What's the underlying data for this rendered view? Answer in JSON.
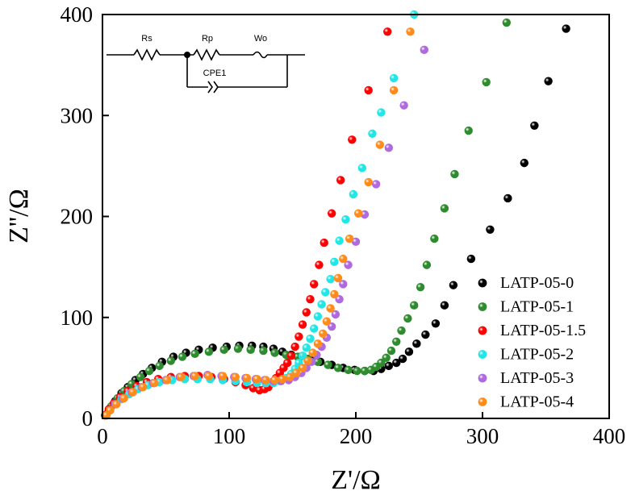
{
  "chart_data": {
    "type": "scatter",
    "title": "",
    "xlabel": "Z'/Ω",
    "ylabel": "Z''/Ω",
    "xlim": [
      0,
      400
    ],
    "ylim": [
      0,
      400
    ],
    "xticks": [
      "0",
      "100",
      "200",
      "300",
      "400"
    ],
    "yticks": [
      "0",
      "100",
      "200",
      "300",
      "400"
    ],
    "legend_position": "bottom-right",
    "series": [
      {
        "name": "LATP-05-0",
        "color": "#000000",
        "points": [
          [
            3,
            3
          ],
          [
            6,
            10
          ],
          [
            10,
            17
          ],
          [
            15,
            25
          ],
          [
            20,
            31
          ],
          [
            26,
            38
          ],
          [
            32,
            44
          ],
          [
            39,
            50
          ],
          [
            47,
            56
          ],
          [
            56,
            61
          ],
          [
            66,
            65
          ],
          [
            76,
            68
          ],
          [
            87,
            70
          ],
          [
            98,
            71
          ],
          [
            108,
            72
          ],
          [
            118,
            72
          ],
          [
            127,
            71
          ],
          [
            135,
            69
          ],
          [
            142,
            66
          ],
          [
            149,
            63
          ],
          [
            156,
            61
          ],
          [
            164,
            59
          ],
          [
            172,
            56
          ],
          [
            181,
            53
          ],
          [
            190,
            50
          ],
          [
            199,
            48
          ],
          [
            207,
            47
          ],
          [
            214,
            47
          ],
          [
            220,
            49
          ],
          [
            226,
            52
          ],
          [
            232,
            55
          ],
          [
            237,
            59
          ],
          [
            242,
            66
          ],
          [
            248,
            74
          ],
          [
            255,
            83
          ],
          [
            263,
            94
          ],
          [
            270,
            112
          ],
          [
            277,
            132
          ],
          [
            291,
            158
          ],
          [
            306,
            187
          ],
          [
            320,
            218
          ],
          [
            333,
            253
          ],
          [
            341,
            290
          ],
          [
            352,
            334
          ],
          [
            366,
            386
          ]
        ]
      },
      {
        "name": "LATP-05-1",
        "color": "#2e8b2e",
        "points": [
          [
            3,
            4
          ],
          [
            7,
            12
          ],
          [
            12,
            20
          ],
          [
            17,
            27
          ],
          [
            23,
            34
          ],
          [
            30,
            41
          ],
          [
            37,
            47
          ],
          [
            45,
            52
          ],
          [
            54,
            57
          ],
          [
            63,
            61
          ],
          [
            73,
            64
          ],
          [
            84,
            66
          ],
          [
            96,
            68
          ],
          [
            107,
            69
          ],
          [
            117,
            68
          ],
          [
            127,
            67
          ],
          [
            136,
            65
          ],
          [
            145,
            63
          ],
          [
            154,
            61
          ],
          [
            162,
            59
          ],
          [
            170,
            56
          ],
          [
            178,
            53
          ],
          [
            186,
            50
          ],
          [
            194,
            48
          ],
          [
            201,
            47
          ],
          [
            207,
            47
          ],
          [
            212,
            48
          ],
          [
            216,
            51
          ],
          [
            220,
            55
          ],
          [
            224,
            60
          ],
          [
            228,
            67
          ],
          [
            232,
            76
          ],
          [
            236,
            87
          ],
          [
            241,
            99
          ],
          [
            246,
            112
          ],
          [
            251,
            130
          ],
          [
            256,
            152
          ],
          [
            262,
            178
          ],
          [
            270,
            208
          ],
          [
            278,
            242
          ],
          [
            289,
            285
          ],
          [
            303,
            333
          ],
          [
            319,
            392
          ]
        ]
      },
      {
        "name": "LATP-05-1.5",
        "color": "#ff0000",
        "points": [
          [
            2,
            3
          ],
          [
            5,
            9
          ],
          [
            9,
            15
          ],
          [
            14,
            21
          ],
          [
            20,
            27
          ],
          [
            27,
            32
          ],
          [
            35,
            36
          ],
          [
            44,
            39
          ],
          [
            54,
            41
          ],
          [
            65,
            42
          ],
          [
            76,
            42
          ],
          [
            86,
            41
          ],
          [
            96,
            39
          ],
          [
            105,
            36
          ],
          [
            113,
            33
          ],
          [
            119,
            30
          ],
          [
            124,
            28
          ],
          [
            128,
            29
          ],
          [
            131,
            31
          ],
          [
            134,
            35
          ],
          [
            137,
            40
          ],
          [
            140,
            45
          ],
          [
            143,
            50
          ],
          [
            146,
            55
          ],
          [
            149,
            62
          ],
          [
            152,
            71
          ],
          [
            155,
            81
          ],
          [
            158,
            93
          ],
          [
            161,
            105
          ],
          [
            164,
            118
          ],
          [
            167,
            133
          ],
          [
            171,
            152
          ],
          [
            175,
            174
          ],
          [
            181,
            203
          ],
          [
            188,
            236
          ],
          [
            197,
            276
          ],
          [
            210,
            325
          ],
          [
            225,
            383
          ]
        ]
      },
      {
        "name": "LATP-05-2",
        "color": "#22e6e6",
        "points": [
          [
            3,
            3
          ],
          [
            6,
            8
          ],
          [
            10,
            14
          ],
          [
            15,
            19
          ],
          [
            21,
            24
          ],
          [
            28,
            29
          ],
          [
            36,
            33
          ],
          [
            45,
            36
          ],
          [
            55,
            38
          ],
          [
            65,
            39
          ],
          [
            75,
            39
          ],
          [
            85,
            39
          ],
          [
            95,
            38
          ],
          [
            105,
            37
          ],
          [
            114,
            36
          ],
          [
            122,
            35
          ],
          [
            129,
            35
          ],
          [
            135,
            35
          ],
          [
            140,
            37
          ],
          [
            145,
            40
          ],
          [
            149,
            44
          ],
          [
            152,
            49
          ],
          [
            155,
            55
          ],
          [
            158,
            62
          ],
          [
            161,
            70
          ],
          [
            164,
            79
          ],
          [
            167,
            89
          ],
          [
            170,
            101
          ],
          [
            173,
            113
          ],
          [
            176,
            125
          ],
          [
            180,
            138
          ],
          [
            183,
            155
          ],
          [
            187,
            176
          ],
          [
            192,
            197
          ],
          [
            198,
            222
          ],
          [
            205,
            248
          ],
          [
            213,
            282
          ],
          [
            220,
            303
          ],
          [
            230,
            337
          ],
          [
            246,
            400
          ]
        ]
      },
      {
        "name": "LATP-05-3",
        "color": "#b06ae0",
        "points": [
          [
            3,
            3
          ],
          [
            6,
            8
          ],
          [
            10,
            14
          ],
          [
            16,
            20
          ],
          [
            23,
            26
          ],
          [
            31,
            31
          ],
          [
            40,
            35
          ],
          [
            50,
            38
          ],
          [
            61,
            41
          ],
          [
            72,
            42
          ],
          [
            83,
            43
          ],
          [
            94,
            42
          ],
          [
            104,
            41
          ],
          [
            113,
            40
          ],
          [
            121,
            39
          ],
          [
            128,
            38
          ],
          [
            135,
            37
          ],
          [
            141,
            37
          ],
          [
            147,
            38
          ],
          [
            152,
            41
          ],
          [
            157,
            45
          ],
          [
            161,
            50
          ],
          [
            165,
            56
          ],
          [
            169,
            63
          ],
          [
            173,
            71
          ],
          [
            177,
            80
          ],
          [
            181,
            91
          ],
          [
            184,
            103
          ],
          [
            187,
            118
          ],
          [
            190,
            133
          ],
          [
            194,
            152
          ],
          [
            200,
            175
          ],
          [
            207,
            202
          ],
          [
            216,
            232
          ],
          [
            226,
            268
          ],
          [
            238,
            310
          ],
          [
            254,
            365
          ]
        ]
      },
      {
        "name": "LATP-05-4",
        "color": "#ff8c1a",
        "points": [
          [
            3,
            3
          ],
          [
            6,
            8
          ],
          [
            11,
            14
          ],
          [
            17,
            20
          ],
          [
            24,
            26
          ],
          [
            32,
            31
          ],
          [
            41,
            35
          ],
          [
            51,
            38
          ],
          [
            62,
            41
          ],
          [
            73,
            42
          ],
          [
            84,
            42
          ],
          [
            95,
            42
          ],
          [
            105,
            41
          ],
          [
            114,
            40
          ],
          [
            122,
            39
          ],
          [
            129,
            38
          ],
          [
            136,
            38
          ],
          [
            142,
            39
          ],
          [
            148,
            41
          ],
          [
            153,
            45
          ],
          [
            158,
            50
          ],
          [
            162,
            57
          ],
          [
            166,
            65
          ],
          [
            170,
            74
          ],
          [
            174,
            84
          ],
          [
            177,
            96
          ],
          [
            180,
            109
          ],
          [
            183,
            123
          ],
          [
            186,
            139
          ],
          [
            190,
            158
          ],
          [
            195,
            178
          ],
          [
            202,
            203
          ],
          [
            210,
            234
          ],
          [
            219,
            271
          ],
          [
            230,
            325
          ],
          [
            243,
            383
          ]
        ]
      }
    ]
  },
  "inset": {
    "labels": [
      "Rs",
      "Rp",
      "Wo",
      "CPE1"
    ]
  }
}
